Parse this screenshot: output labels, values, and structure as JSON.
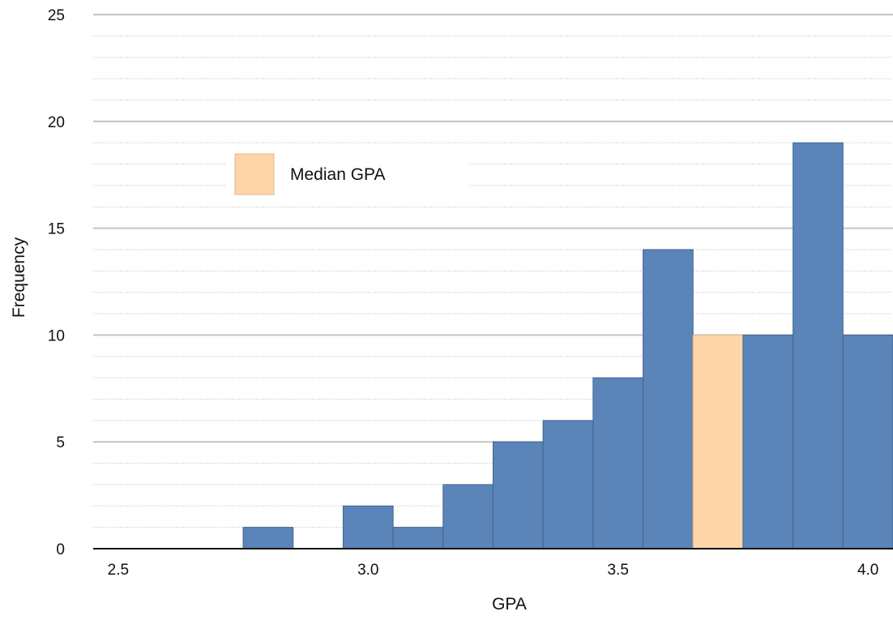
{
  "chart_data": {
    "type": "bar",
    "title": "",
    "xlabel": "GPA",
    "ylabel": "Frequency",
    "ylim": [
      0,
      25
    ],
    "xlim": [
      2.45,
      4.05
    ],
    "bin_width": 0.1,
    "bins": [
      {
        "center": 2.8,
        "value": 1,
        "highlight": false
      },
      {
        "center": 3.0,
        "value": 2,
        "highlight": false
      },
      {
        "center": 3.1,
        "value": 1,
        "highlight": false
      },
      {
        "center": 3.2,
        "value": 3,
        "highlight": false
      },
      {
        "center": 3.3,
        "value": 5,
        "highlight": false
      },
      {
        "center": 3.4,
        "value": 6,
        "highlight": false
      },
      {
        "center": 3.5,
        "value": 8,
        "highlight": false
      },
      {
        "center": 3.6,
        "value": 14,
        "highlight": false
      },
      {
        "center": 3.7,
        "value": 10,
        "highlight": true
      },
      {
        "center": 3.8,
        "value": 10,
        "highlight": false
      },
      {
        "center": 3.9,
        "value": 19,
        "highlight": false
      },
      {
        "center": 4.0,
        "value": 10,
        "highlight": false
      }
    ],
    "x_ticks": [
      {
        "value": 2.5,
        "label": "2.5"
      },
      {
        "value": 3.0,
        "label": "3.0"
      },
      {
        "value": 3.5,
        "label": "3.5"
      },
      {
        "value": 4.0,
        "label": "4.0"
      }
    ],
    "y_ticks": [
      {
        "value": 0,
        "label": "0"
      },
      {
        "value": 5,
        "label": "5"
      },
      {
        "value": 10,
        "label": "10"
      },
      {
        "value": 15,
        "label": "15"
      },
      {
        "value": 20,
        "label": "20"
      },
      {
        "value": 25,
        "label": "25"
      }
    ],
    "y_minor_step": 1,
    "grid": true,
    "legend": {
      "position": "top-left",
      "entries": [
        {
          "label": "Median GPA",
          "color": "#fcd5a8"
        }
      ]
    },
    "colors": {
      "bar": "#5b84b8",
      "bar_edge": "#3f6593",
      "highlight": "#fcd5a8",
      "highlight_edge": "#e0b888",
      "major_grid": "#c4c4c4",
      "minor_grid": "#b9b9b9",
      "axis": "#111111"
    }
  }
}
